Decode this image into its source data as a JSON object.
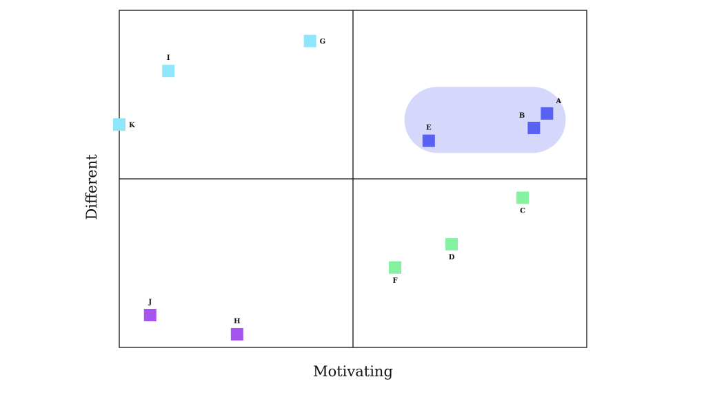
{
  "chart_data": {
    "type": "scatter",
    "xlabel": "Motivating",
    "ylabel": "Different",
    "xlim": [
      0,
      100
    ],
    "ylim": [
      0,
      100
    ],
    "quadrant_dividers": {
      "x": 50,
      "y": 50
    },
    "marker": "square",
    "colors": {
      "light_blue": "#8ee6fb",
      "blue": "#5861f2",
      "green": "#84f2a0",
      "purple": "#a653f0",
      "highlight_fill": "#d6d8fb",
      "frame": "#111111"
    },
    "highlight_region": {
      "x_range": [
        61,
        95.5
      ],
      "y_range": [
        57.7,
        77.3
      ]
    },
    "points": [
      {
        "label": "A",
        "x": 91.5,
        "y": 69.4,
        "color": "#5861f2",
        "label_pos": "above-right"
      },
      {
        "label": "B",
        "x": 88.7,
        "y": 65.1,
        "color": "#5861f2",
        "label_pos": "above-left"
      },
      {
        "label": "C",
        "x": 86.3,
        "y": 44.4,
        "color": "#84f2a0",
        "label_pos": "below"
      },
      {
        "label": "D",
        "x": 71.1,
        "y": 30.6,
        "color": "#84f2a0",
        "label_pos": "below"
      },
      {
        "label": "E",
        "x": 66.2,
        "y": 61.3,
        "color": "#5861f2",
        "label_pos": "above"
      },
      {
        "label": "F",
        "x": 59.0,
        "y": 23.7,
        "color": "#84f2a0",
        "label_pos": "below"
      },
      {
        "label": "G",
        "x": 40.8,
        "y": 90.9,
        "color": "#8ee6fb",
        "label_pos": "right"
      },
      {
        "label": "H",
        "x": 25.2,
        "y": 3.9,
        "color": "#a653f0",
        "label_pos": "above"
      },
      {
        "label": "I",
        "x": 10.5,
        "y": 82.0,
        "color": "#8ee6fb",
        "label_pos": "above"
      },
      {
        "label": "J",
        "x": 6.6,
        "y": 9.6,
        "color": "#a653f0",
        "label_pos": "above"
      },
      {
        "label": "K",
        "x": 0,
        "y": 66.1,
        "color": "#8ee6fb",
        "label_pos": "right"
      }
    ]
  }
}
